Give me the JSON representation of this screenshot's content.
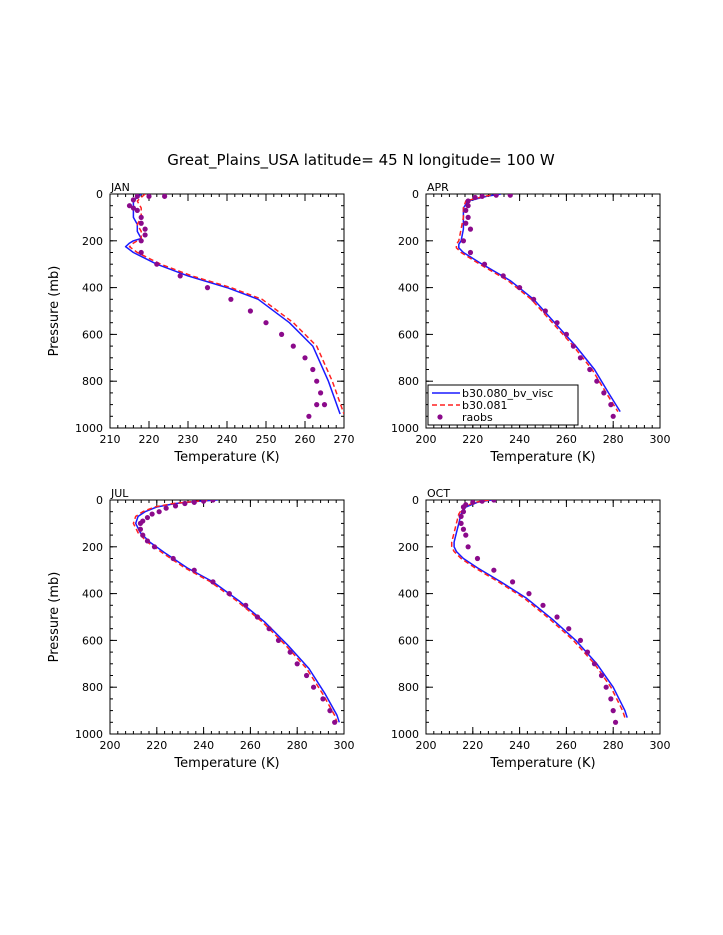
{
  "title": "Great_Plains_USA  latitude= 45 N longitude= 100 W",
  "legend": {
    "placement": "bottom-left of APR panel",
    "entries": [
      {
        "key": "model1",
        "label": "b30.080_bv_visc",
        "color": "#1a1aff",
        "style": "solid"
      },
      {
        "key": "model2",
        "label": "b30.081",
        "color": "#ff2020",
        "style": "dashed"
      },
      {
        "key": "raobs",
        "label": "raobs",
        "color": "#8b0a8b",
        "style": "dots"
      }
    ]
  },
  "chart_data": [
    {
      "type": "line",
      "panel": "JAN",
      "xlabel": "Temperature (K)",
      "ylabel": "Pressure (mb)",
      "xlim": [
        210,
        270
      ],
      "ylim": [
        1000,
        0
      ],
      "xticks": [
        210,
        220,
        230,
        240,
        250,
        260,
        270
      ],
      "yticks": [
        0,
        200,
        400,
        600,
        800,
        1000
      ],
      "series": [
        {
          "name": "b30.080_bv_visc",
          "x": [
            218,
            216,
            216,
            216,
            217,
            217,
            218,
            216,
            215,
            214,
            216,
            222,
            230,
            240,
            248,
            256,
            262,
            266,
            269
          ],
          "y": [
            0,
            30,
            60,
            100,
            130,
            160,
            190,
            200,
            210,
            225,
            250,
            300,
            350,
            400,
            450,
            550,
            650,
            800,
            940
          ]
        },
        {
          "name": "b30.081",
          "x": [
            219,
            217,
            218,
            218,
            217,
            218,
            218,
            217,
            216,
            215,
            217,
            223,
            231,
            241,
            249,
            257,
            263,
            267,
            270
          ],
          "y": [
            0,
            30,
            60,
            100,
            130,
            160,
            190,
            200,
            210,
            225,
            250,
            300,
            350,
            400,
            450,
            550,
            650,
            800,
            940
          ]
        },
        {
          "name": "raobs",
          "x": [
            217,
            220,
            224,
            216,
            215,
            216,
            217,
            218,
            218,
            219,
            219,
            218,
            218,
            222,
            228,
            235,
            241,
            246,
            250,
            254,
            257,
            260,
            262,
            263,
            264,
            265,
            263,
            261
          ],
          "y": [
            10,
            10,
            10,
            25,
            50,
            60,
            70,
            100,
            125,
            150,
            175,
            200,
            250,
            300,
            350,
            400,
            450,
            500,
            550,
            600,
            650,
            700,
            750,
            800,
            850,
            900,
            900,
            950
          ]
        }
      ]
    },
    {
      "type": "line",
      "panel": "APR",
      "xlabel": "Temperature (K)",
      "ylabel": "",
      "xlim": [
        200,
        300
      ],
      "ylim": [
        1000,
        0
      ],
      "xticks": [
        200,
        220,
        240,
        260,
        280,
        300
      ],
      "yticks": [
        0,
        200,
        400,
        600,
        800,
        1000
      ],
      "series": [
        {
          "name": "b30.080_bv_visc",
          "x": [
            232,
            226,
            218,
            216,
            216,
            216,
            215,
            214,
            214,
            216,
            224,
            236,
            246,
            255,
            264,
            272,
            278,
            283
          ],
          "y": [
            0,
            10,
            30,
            60,
            100,
            150,
            200,
            215,
            230,
            250,
            300,
            370,
            450,
            550,
            650,
            750,
            850,
            930
          ]
        },
        {
          "name": "b30.081",
          "x": [
            231,
            225,
            217,
            216,
            216,
            215,
            214,
            213,
            213,
            215,
            223,
            235,
            245,
            254,
            263,
            271,
            277,
            282
          ],
          "y": [
            0,
            10,
            30,
            60,
            100,
            150,
            200,
            215,
            230,
            250,
            300,
            370,
            450,
            550,
            650,
            750,
            850,
            930
          ]
        },
        {
          "name": "raobs",
          "x": [
            236,
            230,
            224,
            221,
            218,
            218,
            217,
            218,
            217,
            219,
            216,
            219,
            225,
            233,
            240,
            246,
            251,
            256,
            260,
            263,
            266,
            270,
            273,
            276,
            279,
            280
          ],
          "y": [
            5,
            5,
            10,
            15,
            30,
            50,
            70,
            100,
            125,
            150,
            200,
            250,
            300,
            350,
            400,
            450,
            500,
            550,
            600,
            650,
            700,
            750,
            800,
            850,
            900,
            950
          ]
        }
      ]
    },
    {
      "type": "line",
      "panel": "JUL",
      "xlabel": "Temperature (K)",
      "ylabel": "Pressure (mb)",
      "xlim": [
        200,
        300
      ],
      "ylim": [
        1000,
        0
      ],
      "xticks": [
        200,
        220,
        240,
        260,
        280,
        300
      ],
      "yticks": [
        0,
        200,
        400,
        600,
        800,
        1000
      ],
      "series": [
        {
          "name": "b30.080_bv_visc",
          "x": [
            246,
            238,
            228,
            220,
            215,
            212,
            211,
            213,
            217,
            224,
            233,
            244,
            255,
            266,
            276,
            285,
            292,
            297,
            298
          ],
          "y": [
            0,
            5,
            15,
            30,
            50,
            70,
            100,
            140,
            180,
            230,
            290,
            350,
            430,
            520,
            620,
            720,
            830,
            920,
            950
          ]
        },
        {
          "name": "b30.081",
          "x": [
            245,
            237,
            227,
            219,
            214,
            211,
            210,
            212,
            216,
            223,
            232,
            243,
            254,
            265,
            275,
            284,
            291,
            296,
            297
          ],
          "y": [
            0,
            5,
            15,
            30,
            50,
            70,
            100,
            140,
            180,
            230,
            290,
            350,
            430,
            520,
            620,
            720,
            830,
            920,
            950
          ]
        },
        {
          "name": "raobs",
          "x": [
            244,
            240,
            236,
            232,
            228,
            224,
            221,
            218,
            216,
            214,
            213,
            213,
            214,
            216,
            219,
            227,
            236,
            244,
            251,
            258,
            263,
            268,
            272,
            277,
            280,
            284,
            287,
            291,
            294,
            296
          ],
          "y": [
            0,
            5,
            10,
            15,
            25,
            35,
            50,
            60,
            75,
            90,
            100,
            125,
            150,
            175,
            200,
            250,
            300,
            350,
            400,
            450,
            500,
            550,
            600,
            650,
            700,
            750,
            800,
            850,
            900,
            950
          ]
        }
      ]
    },
    {
      "type": "line",
      "panel": "OCT",
      "xlabel": "Temperature (K)",
      "ylabel": "",
      "xlim": [
        200,
        300
      ],
      "ylim": [
        1000,
        0
      ],
      "xticks": [
        200,
        220,
        240,
        260,
        280,
        300
      ],
      "yticks": [
        0,
        200,
        400,
        600,
        800,
        1000
      ],
      "series": [
        {
          "name": "b30.080_bv_visc",
          "x": [
            228,
            222,
            217,
            215,
            214,
            213,
            212,
            212,
            213,
            216,
            222,
            232,
            243,
            254,
            264,
            273,
            280,
            285,
            286
          ],
          "y": [
            0,
            10,
            30,
            60,
            100,
            140,
            180,
            200,
            220,
            250,
            290,
            350,
            420,
            510,
            600,
            700,
            800,
            900,
            930
          ]
        },
        {
          "name": "b30.081",
          "x": [
            227,
            221,
            216,
            214,
            213,
            212,
            211,
            211,
            212,
            215,
            221,
            231,
            242,
            253,
            263,
            272,
            279,
            284,
            285
          ],
          "y": [
            0,
            10,
            30,
            60,
            100,
            140,
            180,
            200,
            220,
            250,
            290,
            350,
            420,
            510,
            600,
            700,
            800,
            900,
            930
          ]
        },
        {
          "name": "raobs",
          "x": [
            229,
            224,
            220,
            217,
            216,
            216,
            215,
            215,
            216,
            217,
            218,
            222,
            229,
            237,
            244,
            250,
            256,
            261,
            266,
            269,
            272,
            275,
            277,
            279,
            280,
            281
          ],
          "y": [
            0,
            5,
            10,
            20,
            30,
            50,
            70,
            100,
            125,
            150,
            200,
            250,
            300,
            350,
            400,
            450,
            500,
            550,
            600,
            650,
            700,
            750,
            800,
            850,
            900,
            950
          ]
        }
      ]
    }
  ]
}
